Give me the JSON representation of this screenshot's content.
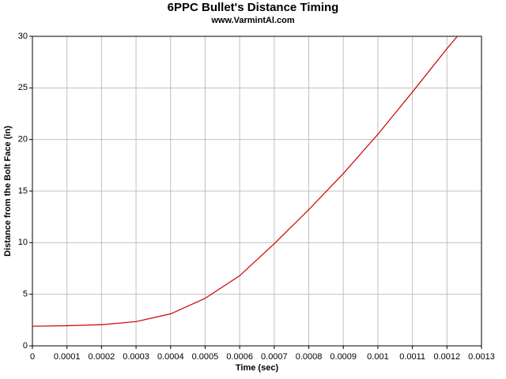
{
  "chart_data": {
    "type": "line",
    "title": "6PPC Bullet's Distance Timing",
    "subtitle": "www.VarmintAl.com",
    "x_label": "Time (sec)",
    "y_label": "Distance from the Bolt Face (in)",
    "x": [
      0,
      0.0001,
      0.0002,
      0.0003,
      0.0004,
      0.0005,
      0.0006,
      0.0007,
      0.0008,
      0.0009,
      0.001,
      0.0011,
      0.0012,
      0.00123
    ],
    "series": [
      {
        "color": "#cc0000",
        "values": [
          1.9,
          1.95,
          2.05,
          2.35,
          3.1,
          4.6,
          6.8,
          9.9,
          13.2,
          16.7,
          20.5,
          24.6,
          28.8,
          30
        ]
      }
    ],
    "xlim": [
      0,
      0.0013
    ],
    "xticks": [
      0,
      0.0001,
      0.0002,
      0.0003,
      0.0004,
      0.0005,
      0.0006,
      0.0007,
      0.0008,
      0.0009,
      0.001,
      0.0011,
      0.0012,
      0.0013
    ],
    "ylim": [
      0,
      30
    ],
    "yticks": [
      0,
      5,
      10,
      15,
      20,
      25,
      30
    ],
    "grid": true
  }
}
